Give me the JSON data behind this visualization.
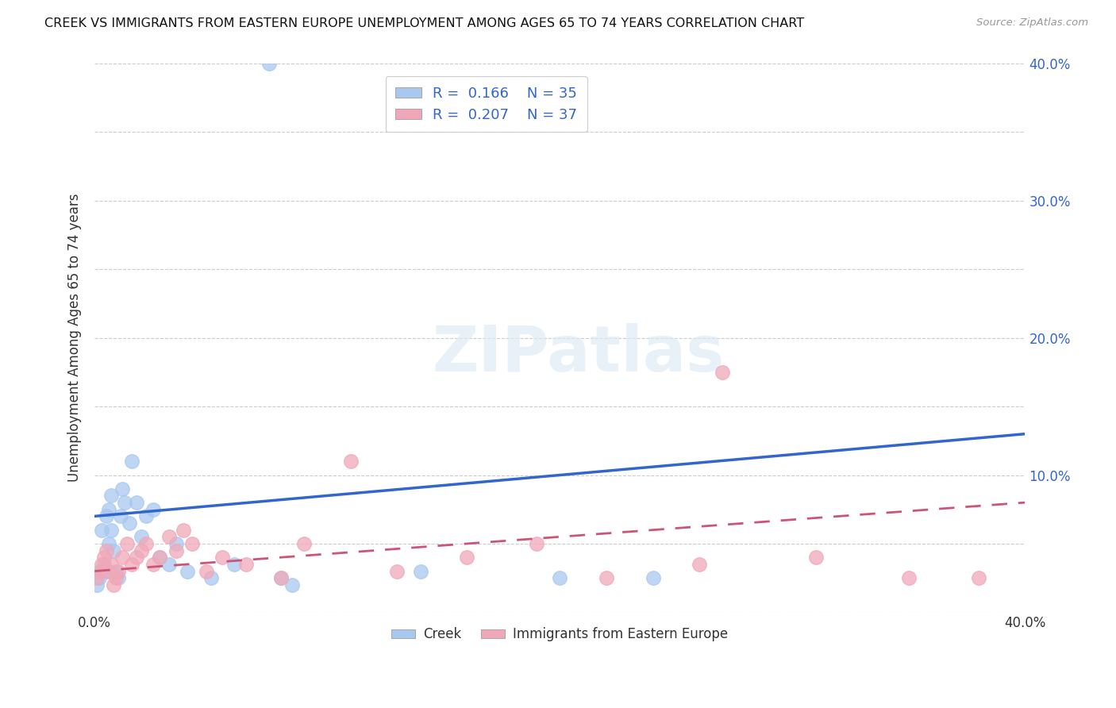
{
  "title": "CREEK VS IMMIGRANTS FROM EASTERN EUROPE UNEMPLOYMENT AMONG AGES 65 TO 74 YEARS CORRELATION CHART",
  "source": "Source: ZipAtlas.com",
  "ylabel": "Unemployment Among Ages 65 to 74 years",
  "xlim": [
    0.0,
    0.4
  ],
  "ylim": [
    0.0,
    0.4
  ],
  "creek_color": "#a8c8f0",
  "eastern_europe_color": "#f0a8b8",
  "creek_line_color": "#3366cc",
  "eastern_europe_line_color": "#cc5577",
  "creek_R": 0.166,
  "creek_N": 35,
  "eastern_europe_R": 0.207,
  "eastern_europe_N": 37,
  "creek_x": [
    0.001,
    0.002,
    0.003,
    0.003,
    0.004,
    0.005,
    0.005,
    0.006,
    0.006,
    0.007,
    0.007,
    0.008,
    0.009,
    0.01,
    0.011,
    0.012,
    0.013,
    0.015,
    0.016,
    0.018,
    0.02,
    0.022,
    0.025,
    0.028,
    0.032,
    0.035,
    0.04,
    0.05,
    0.06,
    0.08,
    0.085,
    0.14,
    0.2,
    0.24,
    0.075
  ],
  "creek_y": [
    0.02,
    0.025,
    0.03,
    0.06,
    0.035,
    0.07,
    0.03,
    0.075,
    0.05,
    0.085,
    0.06,
    0.045,
    0.03,
    0.025,
    0.07,
    0.09,
    0.08,
    0.065,
    0.11,
    0.08,
    0.055,
    0.07,
    0.075,
    0.04,
    0.035,
    0.05,
    0.03,
    0.025,
    0.035,
    0.025,
    0.02,
    0.03,
    0.025,
    0.025,
    0.4
  ],
  "eastern_europe_x": [
    0.001,
    0.002,
    0.003,
    0.004,
    0.005,
    0.006,
    0.007,
    0.008,
    0.009,
    0.01,
    0.012,
    0.014,
    0.016,
    0.018,
    0.02,
    0.022,
    0.025,
    0.028,
    0.032,
    0.035,
    0.038,
    0.042,
    0.048,
    0.055,
    0.065,
    0.08,
    0.09,
    0.11,
    0.13,
    0.16,
    0.19,
    0.22,
    0.26,
    0.31,
    0.35,
    0.27,
    0.38
  ],
  "eastern_europe_y": [
    0.025,
    0.03,
    0.035,
    0.04,
    0.045,
    0.03,
    0.035,
    0.02,
    0.025,
    0.03,
    0.04,
    0.05,
    0.035,
    0.04,
    0.045,
    0.05,
    0.035,
    0.04,
    0.055,
    0.045,
    0.06,
    0.05,
    0.03,
    0.04,
    0.035,
    0.025,
    0.05,
    0.11,
    0.03,
    0.04,
    0.05,
    0.025,
    0.035,
    0.04,
    0.025,
    0.175,
    0.025
  ],
  "creek_line_x0": 0.0,
  "creek_line_y0": 0.07,
  "creek_line_x1": 0.4,
  "creek_line_y1": 0.13,
  "eastern_line_x0": 0.0,
  "eastern_line_y0": 0.03,
  "eastern_line_x1": 0.4,
  "eastern_line_y1": 0.08,
  "watermark_text": "ZIPatlas",
  "background_color": "#ffffff",
  "grid_color": "#cccccc"
}
